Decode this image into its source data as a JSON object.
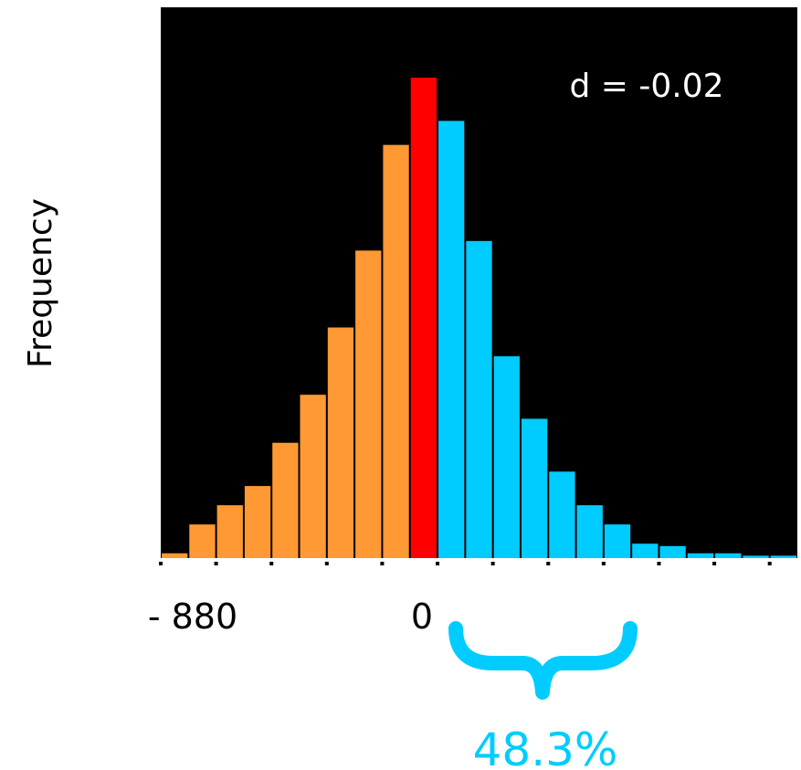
{
  "chart_data": {
    "type": "bar",
    "ylabel": "Frequency",
    "xlabel": "",
    "annotation": "d = -0.02",
    "x_tick_labels": [
      "- 880",
      "0"
    ],
    "bracket_label": "48.3%",
    "grid": false,
    "ylim": [
      0,
      100
    ],
    "values": [
      1,
      7,
      11,
      15,
      24,
      34,
      48,
      64,
      86,
      100,
      91,
      66,
      42,
      29,
      18,
      11,
      7,
      3,
      2.5,
      1,
      1,
      0.5,
      0.5
    ],
    "colors": {
      "below_zero": "#ff9933",
      "zero_bin": "#ff0000",
      "above_zero": "#00ccff",
      "background": "#000000"
    },
    "zero_bin_index": 9
  }
}
